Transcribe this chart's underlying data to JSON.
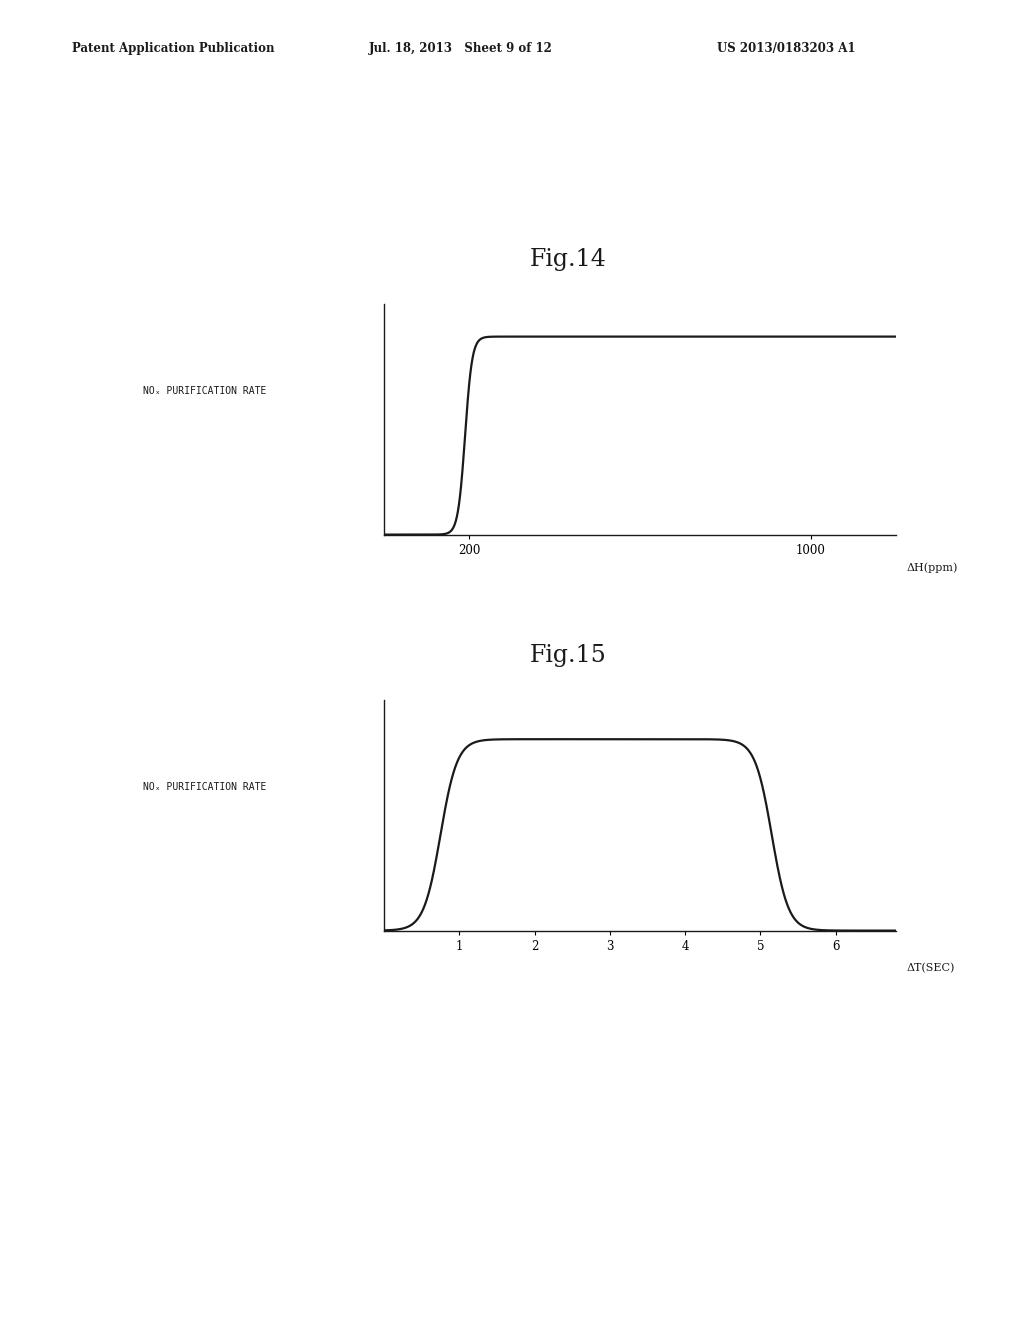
{
  "background_color": "#ffffff",
  "header_left": "Patent Application Publication",
  "header_center": "Jul. 18, 2013   Sheet 9 of 12",
  "header_right": "US 2013/0183203 A1",
  "fig14_title": "Fig.14",
  "fig14_ylabel": "NOₓ PURIFICATION RATE",
  "fig14_xlabel": "ΔH(ppm)",
  "fig14_xticks": [
    200,
    1000
  ],
  "fig14_xlim": [
    0,
    1200
  ],
  "fig14_ylim": [
    0,
    1.05
  ],
  "fig15_title": "Fig.15",
  "fig15_ylabel": "NOₓ PURIFICATION RATE",
  "fig15_xlabel": "ΔT(SEC)",
  "fig15_xticks": [
    1,
    2,
    3,
    4,
    5,
    6
  ],
  "fig15_xlim": [
    0,
    6.8
  ],
  "fig15_ylim": [
    0,
    1.05
  ],
  "line_color": "#1a1a1a",
  "line_width": 1.6,
  "axis_color": "#1a1a1a",
  "text_color": "#1a1a1a",
  "font_size_header": 8.5,
  "font_size_title": 17,
  "font_size_ylabel": 7.0,
  "font_size_xlabel": 8.0,
  "font_size_tick": 8.5
}
